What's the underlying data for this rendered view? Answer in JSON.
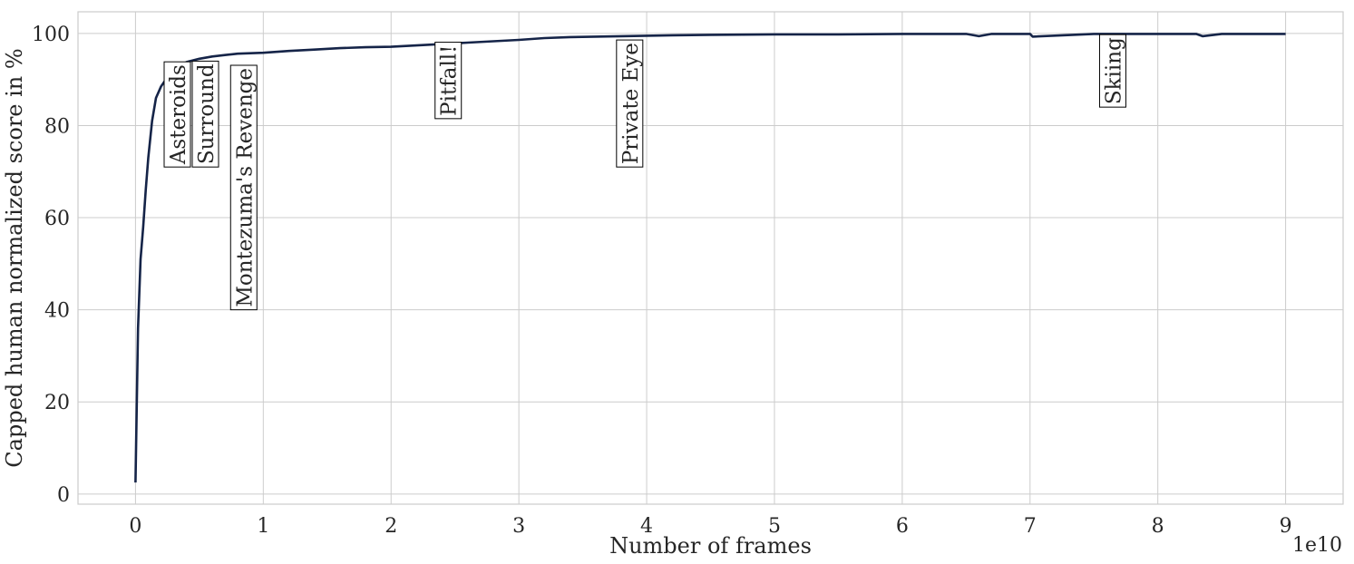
{
  "chart_data": {
    "type": "line",
    "title": "",
    "xlabel": "Number of frames",
    "ylabel": "Capped human normalized score in %",
    "x_offset_text": "1e10",
    "xlim": [
      -0.45,
      9.45
    ],
    "ylim": [
      -2.2,
      104.7
    ],
    "x_ticks": [
      0,
      1,
      2,
      3,
      4,
      5,
      6,
      7,
      8,
      9
    ],
    "x_tick_labels": [
      "0",
      "1",
      "2",
      "3",
      "4",
      "5",
      "6",
      "7",
      "8",
      "9"
    ],
    "y_ticks": [
      0,
      20,
      40,
      60,
      80,
      100
    ],
    "y_tick_labels": [
      "0",
      "20",
      "40",
      "60",
      "80",
      "100"
    ],
    "grid": true,
    "series": [
      {
        "color": "#152448",
        "x": [
          0.0,
          0.02,
          0.04,
          0.06,
          0.08,
          0.1,
          0.13,
          0.16,
          0.2,
          0.25,
          0.3,
          0.35,
          0.4,
          0.5,
          0.6,
          0.7,
          0.8,
          1.0,
          1.2,
          1.4,
          1.6,
          1.8,
          2.0,
          2.2,
          2.4,
          2.6,
          2.8,
          3.0,
          3.2,
          3.4,
          3.6,
          3.8,
          4.0,
          4.2,
          4.5,
          5.0,
          5.5,
          6.0,
          6.5,
          6.6,
          6.7,
          7.0,
          7.02,
          7.5,
          8.0,
          8.3,
          8.35,
          8.5,
          9.0
        ],
        "y": [
          2.5,
          36,
          51,
          58,
          66,
          73,
          81,
          86,
          88.5,
          90.5,
          92,
          93,
          93.8,
          94.5,
          95,
          95.3,
          95.6,
          95.8,
          96.2,
          96.5,
          96.8,
          97,
          97.1,
          97.4,
          97.7,
          98,
          98.3,
          98.6,
          99,
          99.2,
          99.3,
          99.4,
          99.5,
          99.6,
          99.7,
          99.8,
          99.8,
          99.9,
          99.9,
          99.4,
          99.9,
          99.9,
          99.3,
          99.9,
          99.9,
          99.9,
          99.4,
          99.9,
          99.9
        ]
      }
    ],
    "annotations": [
      {
        "text": "Asteroids",
        "x": 0.43,
        "y": 71
      },
      {
        "text": "Surround",
        "x": 0.65,
        "y": 71
      },
      {
        "text": "Montezuma's Revenge",
        "x": 0.95,
        "y": 40
      },
      {
        "text": "Pitfall!",
        "x": 2.55,
        "y": 81.5
      },
      {
        "text": "Private Eye",
        "x": 3.97,
        "y": 71
      },
      {
        "text": "Skiing",
        "x": 7.75,
        "y": 84
      }
    ]
  }
}
